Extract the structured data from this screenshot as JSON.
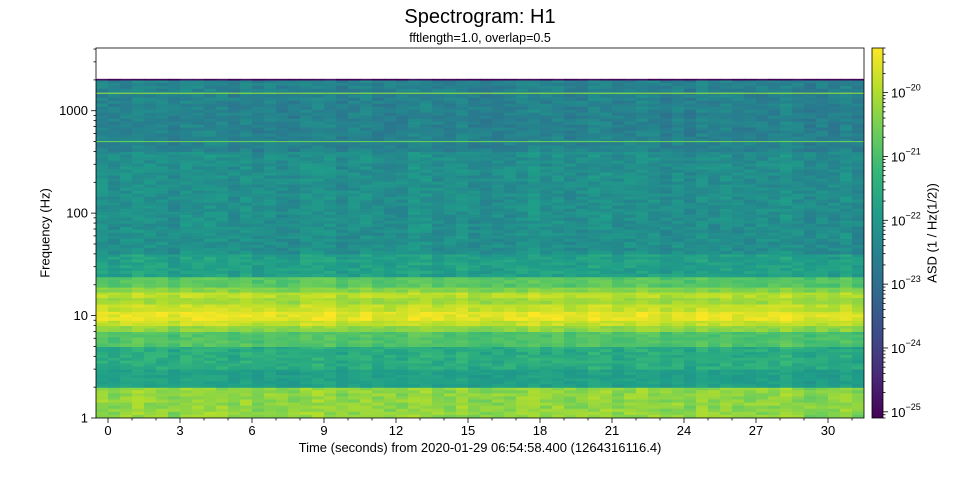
{
  "chart_data": {
    "type": "heatmap",
    "title": "Spectrogram: H1",
    "subtitle": "fftlength=1.0, overlap=0.5",
    "xlabel": "Time (seconds) from 2020-01-29 06:54:58.400 (1264316116.4)",
    "ylabel": "Frequency (Hz)",
    "colorbar_label": "ASD (1 / Hz(1/2))",
    "colormap": "viridis",
    "x_scale": "linear",
    "y_scale": "log",
    "xlim": [
      -0.5,
      31.5
    ],
    "ylim": [
      1,
      4096
    ],
    "x_ticks": [
      0,
      3,
      6,
      9,
      12,
      15,
      18,
      21,
      24,
      27,
      30
    ],
    "x_tick_labels": [
      "0",
      "3",
      "6",
      "9",
      "12",
      "15",
      "18",
      "21",
      "24",
      "27",
      "30"
    ],
    "y_ticks": [
      1,
      10,
      100,
      1000
    ],
    "y_tick_labels": [
      "1",
      "10",
      "100",
      "1000"
    ],
    "colorbar_range": [
      8e-26,
      5e-20
    ],
    "colorbar_scale": "log",
    "colorbar_ticks": [
      1e-25,
      1e-24,
      1e-23,
      1e-22,
      1e-21,
      1e-20
    ],
    "colorbar_tick_labels": [
      {
        "base": "10",
        "exp": "−25"
      },
      {
        "base": "10",
        "exp": "−24"
      },
      {
        "base": "10",
        "exp": "−23"
      },
      {
        "base": "10",
        "exp": "−22"
      },
      {
        "base": "10",
        "exp": "−21"
      },
      {
        "base": "10",
        "exp": "−20"
      }
    ],
    "time_step": 0.5,
    "max_frequency": 2048,
    "frequency_bands": [
      {
        "f_min": 1,
        "f_max": 2,
        "asd": 5e-21
      },
      {
        "f_min": 2,
        "f_max": 3,
        "asd": 1.5e-22
      },
      {
        "f_min": 3,
        "f_max": 5,
        "asd": 3e-22
      },
      {
        "f_min": 5,
        "f_max": 7,
        "asd": 1.2e-21
      },
      {
        "f_min": 7,
        "f_max": 8,
        "asd": 5e-21
      },
      {
        "f_min": 8,
        "f_max": 9,
        "asd": 1.5e-20
      },
      {
        "f_min": 9,
        "f_max": 11,
        "asd": 3e-20
      },
      {
        "f_min": 11,
        "f_max": 13,
        "asd": 1.5e-20
      },
      {
        "f_min": 13,
        "f_max": 15,
        "asd": 7e-21
      },
      {
        "f_min": 15,
        "f_max": 17,
        "asd": 1.2e-20
      },
      {
        "f_min": 17,
        "f_max": 19,
        "asd": 4e-21
      },
      {
        "f_min": 19,
        "f_max": 24,
        "asd": 1.5e-21
      },
      {
        "f_min": 24,
        "f_max": 40,
        "asd": 1.5e-22
      },
      {
        "f_min": 40,
        "f_max": 400,
        "asd": 6e-23
      },
      {
        "f_min": 400,
        "f_max": 2000,
        "asd": 3e-23
      },
      {
        "f_min": 2000,
        "f_max": 2048,
        "asd": 1e-25
      }
    ],
    "lines": [
      {
        "frequency": 500,
        "asd": 2e-21
      },
      {
        "frequency": 1480,
        "asd": 4e-21
      }
    ]
  }
}
